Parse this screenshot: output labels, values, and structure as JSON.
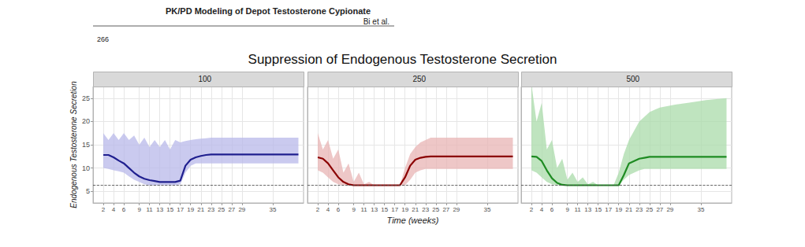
{
  "header": {
    "running_title": "PK/PD Modeling of Depot Testosterone Cypionate",
    "authors": "Bi et al.",
    "page": "266"
  },
  "title": "Suppression of Endogenous Testosterone Secretion",
  "xlabel": "Time (weeks)",
  "ylabel": "Endogenous Testosterone Secretion",
  "chart_data": [
    {
      "type": "line",
      "title": "100",
      "tick_labels": true,
      "grid": true,
      "xlim": [
        0,
        41
      ],
      "xticks": [
        2,
        4,
        6,
        9,
        11,
        13,
        15,
        17,
        19,
        21,
        23,
        25,
        27,
        29,
        35
      ],
      "ylim": [
        2.5,
        27.5
      ],
      "yticks": [
        5,
        10,
        15,
        20,
        25
      ],
      "reference_line": {
        "y": 6.3,
        "line_style": "dashed"
      },
      "x": [
        2,
        3,
        4,
        5,
        6,
        7,
        8,
        9,
        10,
        11,
        12,
        13,
        14,
        15,
        16,
        17,
        18,
        19,
        20,
        21,
        22,
        23,
        24,
        26,
        28,
        30,
        32,
        34,
        36,
        38,
        40
      ],
      "series": [
        {
          "name": "100",
          "color": "#1f1f8f",
          "band_color": "#b8b8ea",
          "values": [
            12.8,
            12.8,
            12.3,
            11.6,
            11.0,
            10.0,
            9.0,
            8.2,
            7.7,
            7.4,
            7.2,
            7.0,
            7.0,
            7.0,
            7.0,
            7.3,
            10.5,
            11.8,
            12.3,
            12.6,
            12.8,
            12.9,
            12.9,
            12.9,
            12.9,
            12.9,
            12.9,
            12.9,
            12.9,
            12.9,
            12.9
          ],
          "lower": [
            10.0,
            9.8,
            9.5,
            9.3,
            9.0,
            8.2,
            7.5,
            7.0,
            6.5,
            6.3,
            6.3,
            6.3,
            6.3,
            6.3,
            6.3,
            6.5,
            9.0,
            10.5,
            11.0,
            11.0,
            11.0,
            11.0,
            11.0,
            11.0,
            11.0,
            11.0,
            11.0,
            11.0,
            11.0,
            11.0,
            11.0
          ],
          "upper": [
            17.5,
            16.0,
            17.5,
            16.0,
            17.5,
            16.0,
            17.0,
            15.0,
            16.5,
            14.5,
            16.0,
            14.5,
            16.0,
            14.0,
            16.0,
            15.5,
            15.8,
            16.0,
            16.2,
            16.3,
            16.4,
            16.5,
            16.5,
            16.5,
            16.5,
            16.5,
            16.5,
            16.5,
            16.5,
            16.5,
            16.5
          ]
        }
      ]
    },
    {
      "type": "line",
      "title": "250",
      "tick_labels": "x",
      "grid": true,
      "xlim": [
        0,
        41
      ],
      "xticks": [
        2,
        4,
        6,
        9,
        11,
        13,
        15,
        17,
        19,
        21,
        23,
        25,
        27,
        29,
        35
      ],
      "ylim": [
        2.5,
        27.5
      ],
      "yticks": [
        5,
        10,
        15,
        20,
        25
      ],
      "reference_line": {
        "y": 6.3,
        "line_style": "dashed"
      },
      "x": [
        2,
        3,
        4,
        5,
        6,
        7,
        8,
        9,
        10,
        11,
        12,
        13,
        14,
        15,
        16,
        17,
        18,
        19,
        20,
        21,
        22,
        23,
        24,
        26,
        28,
        30,
        32,
        34,
        36,
        38,
        40
      ],
      "series": [
        {
          "name": "250",
          "color": "#8b0000",
          "band_color": "#e8b4b4",
          "values": [
            12.3,
            12.0,
            11.0,
            9.5,
            8.0,
            7.0,
            6.5,
            6.3,
            6.3,
            6.3,
            6.3,
            6.3,
            6.3,
            6.3,
            6.3,
            6.3,
            6.3,
            8.0,
            10.5,
            11.8,
            12.2,
            12.4,
            12.5,
            12.5,
            12.5,
            12.5,
            12.5,
            12.5,
            12.5,
            12.5,
            12.5
          ],
          "lower": [
            9.5,
            9.0,
            8.0,
            7.0,
            6.5,
            6.3,
            6.3,
            6.3,
            6.3,
            6.3,
            6.3,
            6.3,
            6.3,
            6.3,
            6.3,
            6.3,
            6.3,
            6.3,
            7.5,
            9.0,
            9.5,
            9.8,
            9.8,
            9.8,
            9.8,
            9.8,
            9.8,
            9.8,
            9.8,
            9.8,
            9.8
          ],
          "upper": [
            17.5,
            14.0,
            16.0,
            12.0,
            14.0,
            9.0,
            11.0,
            7.0,
            9.0,
            6.5,
            7.0,
            6.3,
            6.3,
            6.3,
            6.3,
            6.3,
            6.3,
            10.0,
            13.0,
            14.5,
            15.5,
            16.0,
            16.5,
            16.5,
            16.5,
            16.5,
            16.5,
            16.5,
            16.5,
            16.5,
            16.5
          ]
        }
      ]
    },
    {
      "type": "line",
      "title": "500",
      "tick_labels": "x",
      "grid": true,
      "xlim": [
        0,
        41
      ],
      "xticks": [
        2,
        4,
        6,
        9,
        11,
        13,
        15,
        17,
        19,
        21,
        23,
        25,
        27,
        29,
        35
      ],
      "ylim": [
        2.5,
        27.5
      ],
      "yticks": [
        5,
        10,
        15,
        20,
        25
      ],
      "reference_line": {
        "y": 6.3,
        "line_style": "dashed"
      },
      "x": [
        2,
        3,
        4,
        5,
        6,
        7,
        8,
        9,
        10,
        11,
        12,
        13,
        14,
        15,
        16,
        17,
        18,
        19,
        20,
        21,
        22,
        23,
        24,
        25,
        26,
        27,
        30,
        33,
        36,
        38,
        40
      ],
      "series": [
        {
          "name": "500",
          "color": "#1e8b22",
          "band_color": "#a9dba9",
          "values": [
            12.5,
            12.4,
            11.5,
            9.5,
            7.8,
            6.8,
            6.4,
            6.3,
            6.3,
            6.3,
            6.3,
            6.3,
            6.3,
            6.3,
            6.3,
            6.3,
            6.3,
            6.3,
            8.5,
            11.0,
            11.5,
            12.0,
            12.2,
            12.4,
            12.4,
            12.4,
            12.4,
            12.4,
            12.4,
            12.4,
            12.4
          ],
          "lower": [
            9.5,
            9.0,
            8.0,
            7.0,
            6.5,
            6.3,
            6.3,
            6.3,
            6.3,
            6.3,
            6.3,
            6.3,
            6.3,
            6.3,
            6.3,
            6.3,
            6.3,
            6.3,
            7.5,
            8.5,
            9.0,
            9.5,
            9.8,
            9.8,
            9.8,
            9.8,
            9.8,
            9.8,
            9.8,
            9.8,
            9.8
          ],
          "upper": [
            28.0,
            20.0,
            24.0,
            14.0,
            16.0,
            10.0,
            12.0,
            7.5,
            9.0,
            7.0,
            8.0,
            6.5,
            7.0,
            6.3,
            6.3,
            6.3,
            6.3,
            9.0,
            13.0,
            16.0,
            18.0,
            20.0,
            21.0,
            22.0,
            22.5,
            23.0,
            23.6,
            24.1,
            24.6,
            24.8,
            25.0
          ]
        }
      ]
    }
  ]
}
